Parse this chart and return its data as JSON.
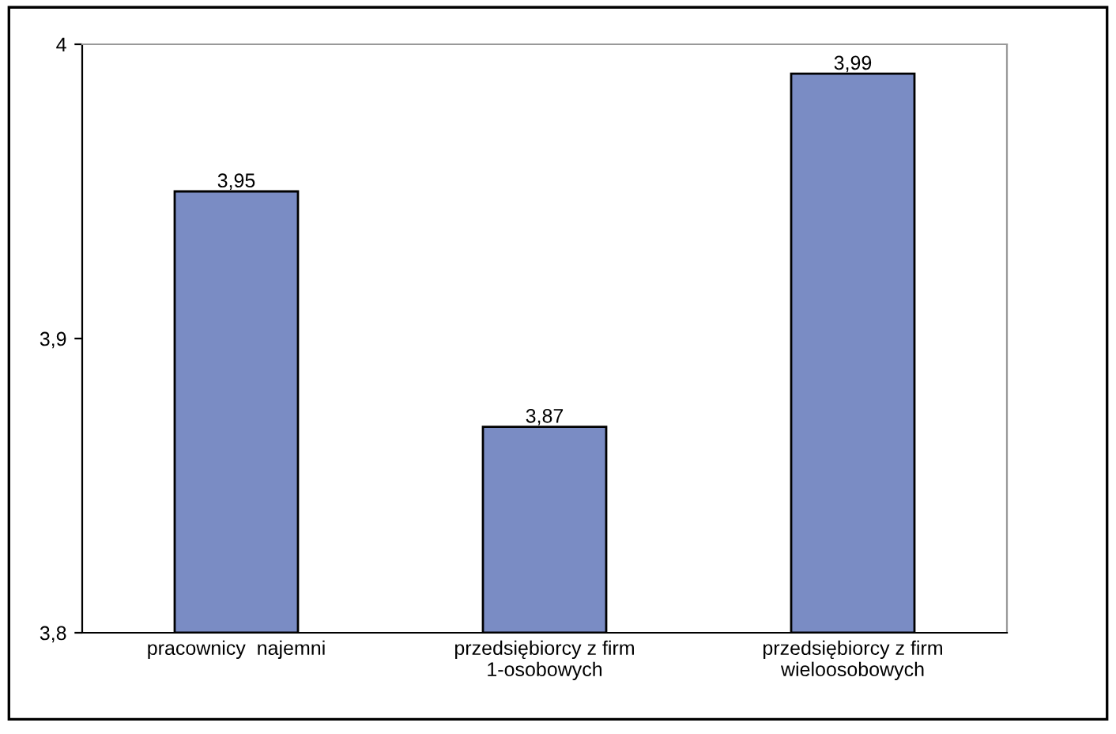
{
  "chart_data": {
    "type": "bar",
    "categories": [
      "pracownicy  najemni",
      "przedsiębiorcy z firm\n1-osobowych",
      "przedsiębiorcy z firm\nwieloosobowych"
    ],
    "values": [
      3.95,
      3.87,
      3.99
    ],
    "value_labels": [
      "3,95",
      "3,87",
      "3,99"
    ],
    "color": "#7a8cc4",
    "ylim": [
      3.8,
      4
    ],
    "yticks": [
      {
        "value": 3.8,
        "label": "3,8"
      },
      {
        "value": 3.9,
        "label": "3,9"
      },
      4
    ],
    "grid": false
  }
}
